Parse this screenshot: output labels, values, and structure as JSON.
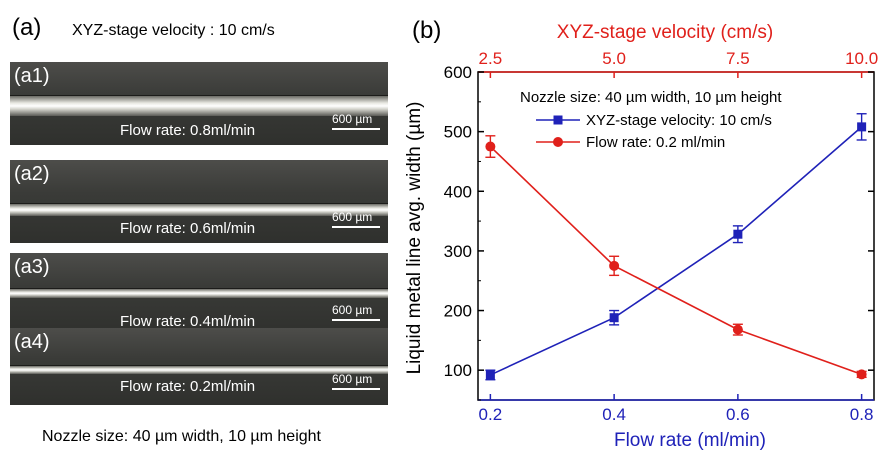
{
  "panel_a": {
    "label": "(a)",
    "velocity_text": "XYZ-stage velocity :  10 cm/s",
    "nozzle_text": "Nozzle size: 40 µm width, 10  µm height",
    "images": [
      {
        "tag": "(a1)",
        "flow_label": "Flow rate: 0.8ml/min",
        "scale_label": "600 µm"
      },
      {
        "tag": "(a2)",
        "flow_label": "Flow rate: 0.6ml/min",
        "scale_label": "600 µm"
      },
      {
        "tag": "(a3)",
        "flow_label": "Flow rate: 0.4ml/min",
        "scale_label": "600 µm"
      },
      {
        "tag": "(a4)",
        "flow_label": "Flow rate: 0.2ml/min",
        "scale_label": "600 µm"
      }
    ]
  },
  "panel_b": {
    "label": "(b)"
  },
  "chart_data": {
    "type": "line",
    "xlabel": "Flow rate (ml/min)",
    "x2label": "XYZ-stage velocity (cm/s)",
    "ylabel": "Liquid metal line avg. width (µm)",
    "xlim": [
      0.18,
      0.82
    ],
    "x2lim": [
      2.5,
      10.0
    ],
    "ylim": [
      50,
      600
    ],
    "x_ticks": [
      0.2,
      0.4,
      0.6,
      0.8
    ],
    "x_tick_labels": [
      "0.2",
      "0.4",
      "0.6",
      "0.8"
    ],
    "x2_ticks": [
      2.5,
      5.0,
      7.5,
      10.0
    ],
    "x2_tick_labels": [
      "2.5",
      "5.0",
      "7.5",
      "10.0"
    ],
    "y_ticks": [
      100,
      200,
      300,
      400,
      500,
      600
    ],
    "y_tick_labels": [
      "100",
      "200",
      "300",
      "400",
      "500",
      "600"
    ],
    "legend_title": "Nozzle size: 40 µm width, 10  µm height",
    "legend_position": "top-center",
    "grid": false,
    "series": [
      {
        "name": "XYZ-stage velocity: 10 cm/s",
        "axis": "bottom",
        "marker": "square",
        "color": "#1f22b8",
        "x": [
          0.2,
          0.4,
          0.6,
          0.8
        ],
        "y": [
          92,
          188,
          328,
          508
        ],
        "err": [
          8,
          12,
          14,
          22
        ]
      },
      {
        "name": "Flow rate: 0.2 ml/min",
        "axis": "top",
        "marker": "circle",
        "color": "#e0201b",
        "x": [
          2.5,
          5.0,
          7.5,
          10.0
        ],
        "y": [
          475,
          275,
          168,
          93
        ],
        "err": [
          18,
          16,
          9,
          5
        ]
      }
    ]
  }
}
